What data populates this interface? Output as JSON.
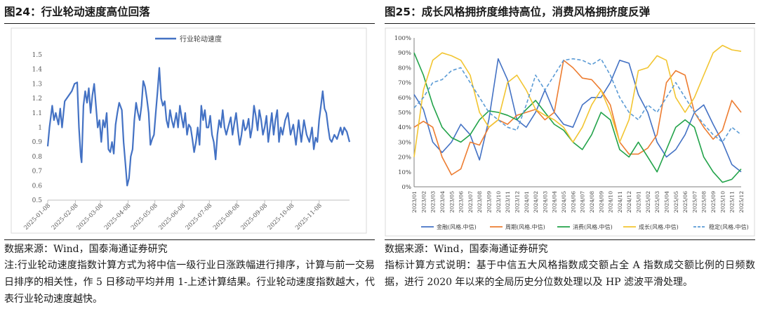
{
  "left": {
    "title": "图24：行业轮动速度高位回落",
    "source": "数据来源：Wind，国泰海通证券研究",
    "note": "注:行业轮动速度指数计算方式为将中信一级行业日涨跌幅进行排序，计算与前一交易日排序的相关性，作 5 日移动平均并用 1-上述计算结果。行业轮动速度指数越大，代表行业轮动速度越快。"
  },
  "right": {
    "title": "图25：成长风格拥挤度维持高位，消费风格拥挤度反弹",
    "source": "数据来源：Wind，国泰海通证券研究",
    "note": "指标计算方式说明：基于中信五大风格指数成交额占全 A 指数成交额比例的日频数据，进行 2020 年以来的全局历史分位数处理以及 HP 滤波平滑处理。"
  },
  "chart_data": [
    {
      "type": "line",
      "y_ticks": [
        "0.5",
        "0.6",
        "0.7",
        "0.8",
        "0.9",
        "1",
        "1.1",
        "1.2",
        "1.3",
        "1.4",
        "1.5"
      ],
      "ylim": [
        0.5,
        1.5
      ],
      "x_ticks": [
        "2025-01-08",
        "2025-02-08",
        "2025-03-08",
        "2025-04-08",
        "2025-05-08",
        "2025-06-08",
        "2025-07-08",
        "2025-08-08",
        "2025-09-08",
        "2025-10-08",
        "2025-11-08"
      ],
      "x_start": "2025-01-08",
      "x_end": "2025-12-12",
      "legend_position": "top-left",
      "series": [
        {
          "name": "行业轮动速度",
          "color": "#4472C4",
          "points": [
            [
              "2025-01-08",
              0.87
            ],
            [
              "2025-01-10",
              1.0
            ],
            [
              "2025-01-13",
              1.15
            ],
            [
              "2025-01-15",
              1.05
            ],
            [
              "2025-01-17",
              1.1
            ],
            [
              "2025-01-20",
              1.02
            ],
            [
              "2025-01-22",
              1.13
            ],
            [
              "2025-01-24",
              1.0
            ],
            [
              "2025-01-27",
              1.18
            ],
            [
              "2025-02-04",
              1.25
            ],
            [
              "2025-02-07",
              1.3
            ],
            [
              "2025-02-10",
              1.31
            ],
            [
              "2025-02-12",
              1.0
            ],
            [
              "2025-02-14",
              0.8
            ],
            [
              "2025-02-15",
              0.76
            ],
            [
              "2025-02-17",
              1.15
            ],
            [
              "2025-02-19",
              1.25
            ],
            [
              "2025-02-21",
              1.17
            ],
            [
              "2025-02-23",
              1.27
            ],
            [
              "2025-02-25",
              1.1
            ],
            [
              "2025-02-27",
              1.22
            ],
            [
              "2025-03-01",
              1.3
            ],
            [
              "2025-03-03",
              1.15
            ],
            [
              "2025-03-05",
              1.0
            ],
            [
              "2025-03-07",
              1.05
            ],
            [
              "2025-03-09",
              0.9
            ],
            [
              "2025-03-11",
              1.05
            ],
            [
              "2025-03-13",
              1.0
            ],
            [
              "2025-03-15",
              1.1
            ],
            [
              "2025-03-17",
              0.85
            ],
            [
              "2025-03-19",
              0.83
            ],
            [
              "2025-03-21",
              0.9
            ],
            [
              "2025-03-23",
              0.82
            ],
            [
              "2025-03-25",
              1.02
            ],
            [
              "2025-03-27",
              1.1
            ],
            [
              "2025-03-29",
              1.17
            ],
            [
              "2025-04-01",
              1.12
            ],
            [
              "2025-04-03",
              0.9
            ],
            [
              "2025-04-05",
              0.75
            ],
            [
              "2025-04-07",
              0.6
            ],
            [
              "2025-04-09",
              0.65
            ],
            [
              "2025-04-11",
              0.8
            ],
            [
              "2025-04-13",
              0.85
            ],
            [
              "2025-04-15",
              1.05
            ],
            [
              "2025-04-17",
              1.17
            ],
            [
              "2025-04-19",
              1.1
            ],
            [
              "2025-04-21",
              1.05
            ],
            [
              "2025-04-23",
              1.15
            ],
            [
              "2025-04-25",
              1.32
            ],
            [
              "2025-04-27",
              1.28
            ],
            [
              "2025-04-29",
              1.2
            ],
            [
              "2025-05-01",
              1.1
            ],
            [
              "2025-05-03",
              0.88
            ],
            [
              "2025-05-05",
              0.92
            ],
            [
              "2025-05-07",
              0.95
            ],
            [
              "2025-05-09",
              1.1
            ],
            [
              "2025-05-11",
              1.25
            ],
            [
              "2025-05-13",
              1.41
            ],
            [
              "2025-05-15",
              1.2
            ],
            [
              "2025-05-17",
              1.15
            ],
            [
              "2025-05-19",
              1.18
            ],
            [
              "2025-05-21",
              1.05
            ],
            [
              "2025-05-23",
              1.0
            ],
            [
              "2025-05-25",
              1.12
            ],
            [
              "2025-05-27",
              1.05
            ],
            [
              "2025-05-29",
              1.0
            ],
            [
              "2025-06-01",
              1.1
            ],
            [
              "2025-06-03",
              1.0
            ],
            [
              "2025-06-05",
              1.15
            ],
            [
              "2025-06-07",
              1.07
            ],
            [
              "2025-06-09",
              1.0
            ],
            [
              "2025-06-11",
              1.1
            ],
            [
              "2025-06-13",
              0.95
            ],
            [
              "2025-06-15",
              1.02
            ],
            [
              "2025-06-17",
              1.0
            ],
            [
              "2025-06-19",
              0.92
            ],
            [
              "2025-06-21",
              0.83
            ],
            [
              "2025-06-23",
              0.9
            ],
            [
              "2025-06-25",
              1.0
            ],
            [
              "2025-06-27",
              0.88
            ],
            [
              "2025-06-29",
              1.15
            ],
            [
              "2025-07-01",
              1.05
            ],
            [
              "2025-07-03",
              1.12
            ],
            [
              "2025-07-05",
              1.0
            ],
            [
              "2025-07-07",
              1.0
            ],
            [
              "2025-07-09",
              1.08
            ],
            [
              "2025-07-11",
              0.95
            ],
            [
              "2025-07-13",
              0.9
            ],
            [
              "2025-07-15",
              0.78
            ],
            [
              "2025-07-17",
              0.95
            ],
            [
              "2025-07-19",
              1.05
            ],
            [
              "2025-07-21",
              1.0
            ],
            [
              "2025-07-23",
              1.12
            ],
            [
              "2025-07-25",
              1.0
            ],
            [
              "2025-07-27",
              0.95
            ],
            [
              "2025-07-29",
              1.0
            ],
            [
              "2025-08-01",
              1.07
            ],
            [
              "2025-08-03",
              0.95
            ],
            [
              "2025-08-05",
              1.03
            ],
            [
              "2025-08-07",
              1.1
            ],
            [
              "2025-08-09",
              0.98
            ],
            [
              "2025-08-11",
              0.88
            ],
            [
              "2025-08-13",
              0.95
            ],
            [
              "2025-08-15",
              1.05
            ],
            [
              "2025-08-17",
              0.98
            ],
            [
              "2025-08-19",
              1.0
            ],
            [
              "2025-08-21",
              1.06
            ],
            [
              "2025-08-23",
              0.93
            ],
            [
              "2025-08-25",
              1.0
            ],
            [
              "2025-08-27",
              1.15
            ],
            [
              "2025-08-29",
              1.08
            ],
            [
              "2025-08-31",
              0.98
            ],
            [
              "2025-09-02",
              1.12
            ],
            [
              "2025-09-04",
              1.05
            ],
            [
              "2025-09-06",
              0.95
            ],
            [
              "2025-09-08",
              1.0
            ],
            [
              "2025-09-10",
              1.08
            ],
            [
              "2025-09-12",
              0.9
            ],
            [
              "2025-09-14",
              1.0
            ],
            [
              "2025-09-16",
              1.1
            ],
            [
              "2025-09-18",
              0.95
            ],
            [
              "2025-09-20",
              1.05
            ],
            [
              "2025-09-22",
              1.12
            ],
            [
              "2025-09-24",
              0.9
            ],
            [
              "2025-09-26",
              1.0
            ],
            [
              "2025-09-28",
              0.95
            ],
            [
              "2025-10-01",
              1.05
            ],
            [
              "2025-10-04",
              1.1
            ],
            [
              "2025-10-07",
              0.95
            ],
            [
              "2025-10-10",
              1.02
            ],
            [
              "2025-10-13",
              0.88
            ],
            [
              "2025-10-16",
              1.05
            ],
            [
              "2025-10-19",
              0.9
            ],
            [
              "2025-10-22",
              1.05
            ],
            [
              "2025-10-25",
              0.95
            ],
            [
              "2025-10-28",
              0.9
            ],
            [
              "2025-10-31",
              1.0
            ],
            [
              "2025-11-02",
              0.85
            ],
            [
              "2025-11-04",
              0.93
            ],
            [
              "2025-11-06",
              0.9
            ],
            [
              "2025-11-08",
              1.05
            ],
            [
              "2025-11-10",
              1.15
            ],
            [
              "2025-11-12",
              1.25
            ],
            [
              "2025-11-14",
              1.13
            ],
            [
              "2025-11-16",
              1.1
            ],
            [
              "2025-11-18",
              1.0
            ],
            [
              "2025-11-20",
              0.92
            ],
            [
              "2025-11-22",
              0.9
            ],
            [
              "2025-11-25",
              0.95
            ],
            [
              "2025-11-28",
              0.92
            ],
            [
              "2025-12-02",
              1.0
            ],
            [
              "2025-12-04",
              0.95
            ],
            [
              "2025-12-06",
              1.0
            ],
            [
              "2025-12-09",
              0.97
            ],
            [
              "2025-12-12",
              0.9
            ]
          ]
        }
      ]
    },
    {
      "type": "line",
      "y_ticks": [
        "0%",
        "10%",
        "20%",
        "30%",
        "40%",
        "50%",
        "60%",
        "70%",
        "80%",
        "90%",
        "100%"
      ],
      "ylim": [
        0,
        100
      ],
      "categories": [
        "2023/01",
        "2023/02",
        "2023/03",
        "2023/04",
        "2023/05",
        "2023/06",
        "2023/07",
        "2023/08",
        "2023/09",
        "2023/10",
        "2023/11",
        "2023/12",
        "2024/01",
        "2024/02",
        "2024/03",
        "2024/04",
        "2024/05",
        "2024/06",
        "2024/07",
        "2024/08",
        "2024/09",
        "2024/10",
        "2024/11",
        "2024/12",
        "2025/01",
        "2025/02",
        "2025/03",
        "2025/04",
        "2025/05",
        "2025/06",
        "2025/07",
        "2025/08",
        "2025/09",
        "2025/10",
        "2025/11",
        "2025/12"
      ],
      "legend_position": "bottom",
      "series": [
        {
          "name": "金融(风格.中信)",
          "color": "#4472C4",
          "dash": false,
          "values": [
            62,
            52,
            30,
            23,
            30,
            42,
            35,
            18,
            45,
            86,
            72,
            45,
            40,
            50,
            65,
            50,
            42,
            40,
            55,
            60,
            60,
            70,
            85,
            83,
            62,
            50,
            30,
            20,
            25,
            35,
            50,
            55,
            42,
            30,
            15,
            10
          ]
        },
        {
          "name": "周期(风格.中信)",
          "color": "#ED7D31",
          "dash": false,
          "values": [
            40,
            44,
            40,
            20,
            8,
            12,
            30,
            28,
            40,
            45,
            42,
            48,
            50,
            52,
            45,
            50,
            85,
            80,
            73,
            72,
            65,
            55,
            30,
            22,
            22,
            26,
            35,
            70,
            78,
            75,
            50,
            40,
            32,
            38,
            58,
            50
          ]
        },
        {
          "name": "消费(风格.中信)",
          "color": "#22A34A",
          "dash": false,
          "values": [
            90,
            75,
            55,
            40,
            33,
            30,
            35,
            45,
            51,
            50,
            48,
            45,
            52,
            58,
            50,
            42,
            38,
            30,
            25,
            35,
            50,
            45,
            25,
            20,
            30,
            20,
            10,
            25,
            40,
            45,
            40,
            20,
            10,
            3,
            5,
            12
          ]
        },
        {
          "name": "成长(风格.中信)",
          "color": "#F2C531",
          "dash": false,
          "values": [
            20,
            65,
            85,
            90,
            88,
            85,
            75,
            50,
            40,
            45,
            70,
            75,
            65,
            52,
            48,
            45,
            40,
            30,
            40,
            55,
            65,
            50,
            30,
            45,
            78,
            80,
            88,
            85,
            60,
            50,
            60,
            75,
            90,
            95,
            92,
            91
          ]
        },
        {
          "name": "稳定(风格.中信)",
          "color": "#5B9BD5",
          "dash": true,
          "values": [
            53,
            60,
            70,
            72,
            78,
            80,
            70,
            60,
            50,
            45,
            40,
            38,
            55,
            75,
            65,
            75,
            85,
            86,
            85,
            82,
            86,
            75,
            60,
            50,
            45,
            55,
            50,
            60,
            70,
            60,
            50,
            42,
            35,
            30,
            40,
            35
          ]
        }
      ]
    }
  ]
}
